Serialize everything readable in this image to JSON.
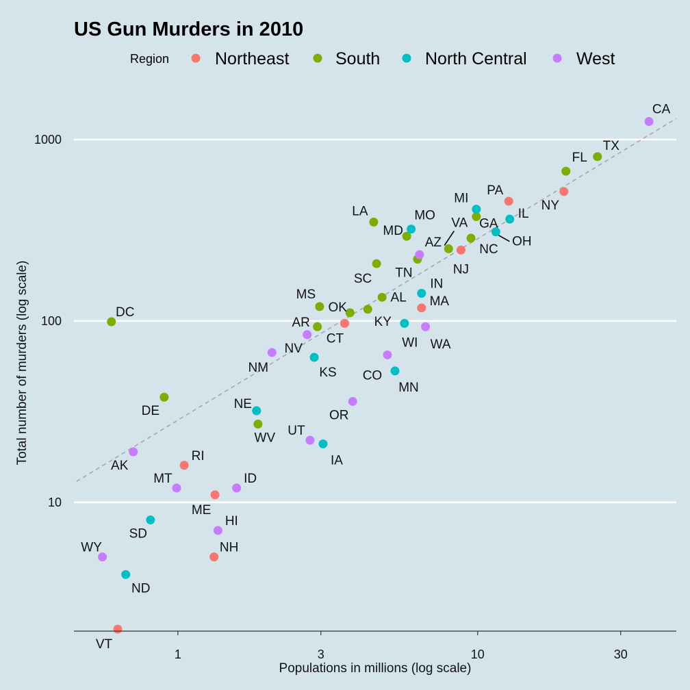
{
  "chart_data": {
    "type": "scatter",
    "title": "US Gun Murders in 2010",
    "xlabel": "Populations in millions (log scale)",
    "ylabel": "Total number of murders (log scale)",
    "x_scale": "log10",
    "y_scale": "log10",
    "xlim": [
      0.45,
      46
    ],
    "ylim": [
      1.95,
      1900
    ],
    "x_ticks": [
      1,
      3,
      10,
      30
    ],
    "x_tick_labels": [
      "1",
      "3",
      "10",
      "30"
    ],
    "y_ticks": [
      10,
      100,
      1000
    ],
    "y_tick_labels": [
      "10",
      "100",
      "1000"
    ],
    "grid": "horizontal major lines",
    "legend_title": "Region",
    "legend_position": "top",
    "reference_line": {
      "style": "dashed",
      "color": "#a6a6a6",
      "slope_loglog": 1,
      "rate_per_million": 28.4
    },
    "series": [
      {
        "name": "Northeast",
        "color": "#f8766d",
        "points": [
          {
            "label": "PA",
            "x": 12.7,
            "y": 457
          },
          {
            "label": "NY",
            "x": 19.4,
            "y": 517
          },
          {
            "label": "NJ",
            "x": 8.8,
            "y": 246
          },
          {
            "label": "MA",
            "x": 6.5,
            "y": 118
          },
          {
            "label": "CT",
            "x": 3.6,
            "y": 97
          },
          {
            "label": "RI",
            "x": 1.05,
            "y": 16
          },
          {
            "label": "ME",
            "x": 1.33,
            "y": 11
          },
          {
            "label": "NH",
            "x": 1.32,
            "y": 5
          },
          {
            "label": "VT",
            "x": 0.63,
            "y": 2
          }
        ]
      },
      {
        "name": "South",
        "color": "#7cae00",
        "points": [
          {
            "label": "TX",
            "x": 25.1,
            "y": 805
          },
          {
            "label": "FL",
            "x": 19.7,
            "y": 669
          },
          {
            "label": "GA",
            "x": 9.9,
            "y": 376
          },
          {
            "label": "NC",
            "x": 9.5,
            "y": 286
          },
          {
            "label": "VA",
            "x": 8.0,
            "y": 250
          },
          {
            "label": "LA",
            "x": 4.5,
            "y": 351
          },
          {
            "label": "TN",
            "x": 6.3,
            "y": 219
          },
          {
            "label": "MD",
            "x": 5.8,
            "y": 293
          },
          {
            "label": "SC",
            "x": 4.6,
            "y": 207
          },
          {
            "label": "AL",
            "x": 4.8,
            "y": 135
          },
          {
            "label": "KY",
            "x": 4.3,
            "y": 116
          },
          {
            "label": "OK",
            "x": 3.75,
            "y": 111
          },
          {
            "label": "MS",
            "x": 2.97,
            "y": 120
          },
          {
            "label": "AR",
            "x": 2.92,
            "y": 93
          },
          {
            "label": "WV",
            "x": 1.85,
            "y": 27
          },
          {
            "label": "DE",
            "x": 0.9,
            "y": 38
          },
          {
            "label": "DC",
            "x": 0.6,
            "y": 99
          }
        ]
      },
      {
        "name": "North Central",
        "color": "#00bfc4",
        "points": [
          {
            "label": "IL",
            "x": 12.8,
            "y": 364
          },
          {
            "label": "OH",
            "x": 11.5,
            "y": 310
          },
          {
            "label": "MI",
            "x": 9.9,
            "y": 413
          },
          {
            "label": "MO",
            "x": 6.0,
            "y": 321
          },
          {
            "label": "IN",
            "x": 6.5,
            "y": 142
          },
          {
            "label": "WI",
            "x": 5.7,
            "y": 97
          },
          {
            "label": "MN",
            "x": 5.3,
            "y": 53
          },
          {
            "label": "KS",
            "x": 2.85,
            "y": 63
          },
          {
            "label": "IA",
            "x": 3.05,
            "y": 21
          },
          {
            "label": "NE",
            "x": 1.83,
            "y": 32
          },
          {
            "label": "SD",
            "x": 0.81,
            "y": 8
          },
          {
            "label": "ND",
            "x": 0.67,
            "y": 4
          }
        ]
      },
      {
        "name": "West",
        "color": "#c77cff",
        "points": [
          {
            "label": "CA",
            "x": 37.3,
            "y": 1257
          },
          {
            "label": "AZ",
            "x": 6.4,
            "y": 232
          },
          {
            "label": "WA",
            "x": 6.7,
            "y": 93
          },
          {
            "label": "CO",
            "x": 5.0,
            "y": 65
          },
          {
            "label": "NV",
            "x": 2.7,
            "y": 84
          },
          {
            "label": "NM",
            "x": 2.06,
            "y": 67
          },
          {
            "label": "OR",
            "x": 3.83,
            "y": 36
          },
          {
            "label": "UT",
            "x": 2.76,
            "y": 22
          },
          {
            "label": "ID",
            "x": 1.57,
            "y": 12
          },
          {
            "label": "HI",
            "x": 1.36,
            "y": 7
          },
          {
            "label": "MT",
            "x": 0.99,
            "y": 12
          },
          {
            "label": "AK",
            "x": 0.71,
            "y": 19
          },
          {
            "label": "WY",
            "x": 0.56,
            "y": 5
          }
        ]
      }
    ]
  }
}
